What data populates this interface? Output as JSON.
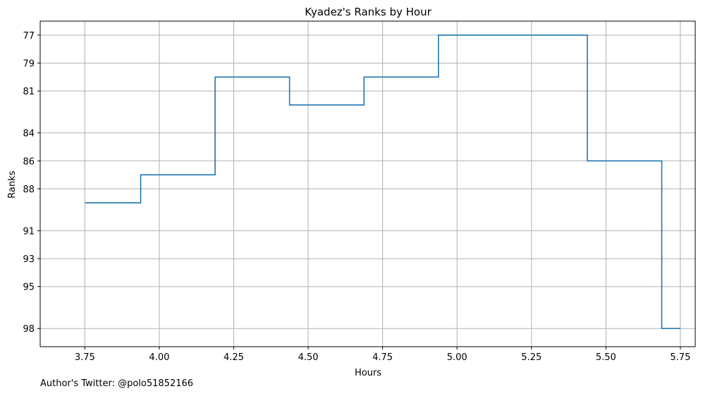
{
  "chart_data": {
    "type": "line",
    "step": "mid",
    "title": "Kyadez's Ranks by Hour",
    "xlabel": "Hours",
    "ylabel": "Ranks",
    "x": [
      3.75,
      3.875,
      4.0,
      4.125,
      4.25,
      4.375,
      4.5,
      4.625,
      4.75,
      4.875,
      5.0,
      5.125,
      5.25,
      5.375,
      5.5,
      5.625,
      5.75
    ],
    "y": [
      89,
      89,
      87,
      87,
      80,
      80,
      82,
      82,
      80,
      80,
      77,
      77,
      77,
      77,
      86,
      86,
      98
    ],
    "xlim": [
      3.6,
      5.8
    ],
    "ylim": [
      99.3,
      76.0
    ],
    "y_inverted": true,
    "xticks": [
      "3.75",
      "4.00",
      "4.25",
      "4.50",
      "4.75",
      "5.00",
      "5.25",
      "5.50",
      "5.75"
    ],
    "yticks": [
      "77",
      "79",
      "81",
      "84",
      "86",
      "88",
      "91",
      "93",
      "95",
      "98"
    ],
    "yticks_positions": [
      77,
      79,
      81,
      84,
      86,
      88,
      91,
      93,
      95,
      98
    ],
    "grid": true,
    "line_color": "#1f77b4"
  },
  "footer": {
    "credit": "Author's Twitter: @polo51852166"
  }
}
